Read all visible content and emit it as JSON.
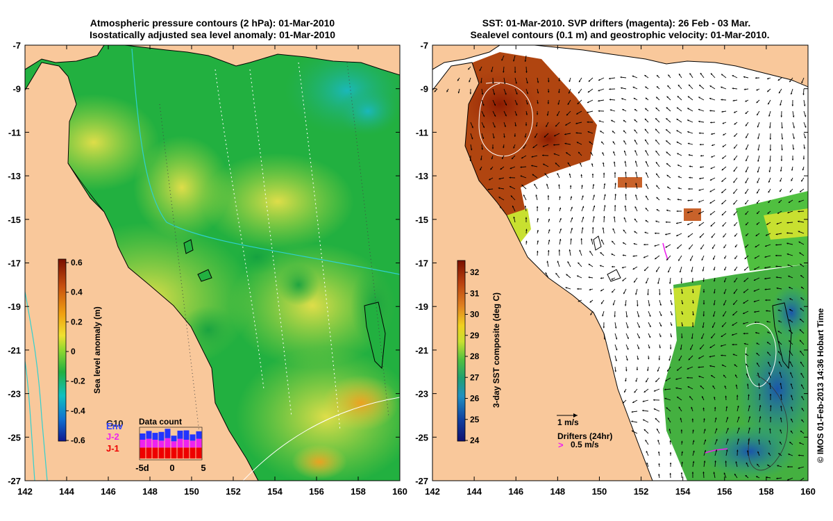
{
  "left_map": {
    "title_line1": "Atmospheric pressure contours (2 hPa): 01-Mar-2010",
    "title_line2": "Isostatically adjusted sea level anomaly: 01-Mar-2010",
    "colorbar": {
      "label": "Sea level anomaly (m)",
      "ticks": [
        "0.6",
        "0.4",
        "0.2",
        "0",
        "-0.2",
        "-0.4",
        "-0.6"
      ]
    },
    "inset": {
      "title": "Data count",
      "legend": [
        {
          "label": "G10",
          "color": "#222222"
        },
        {
          "label": "Env",
          "color": "#3344ff"
        },
        {
          "label": "J-2",
          "color": "#ee22ee"
        },
        {
          "label": "J-1",
          "color": "#ee0000"
        }
      ],
      "x_ticks": [
        "-5d",
        "0",
        "5"
      ],
      "bars": [
        {
          "j1": 0.35,
          "j2": 0.25,
          "env": 0.2
        },
        {
          "j1": 0.35,
          "j2": 0.28,
          "env": 0.25
        },
        {
          "j1": 0.35,
          "j2": 0.25,
          "env": 0.22
        },
        {
          "j1": 0.35,
          "j2": 0.22,
          "env": 0.28
        },
        {
          "j1": 0.35,
          "j2": 0.3,
          "env": 0.3
        },
        {
          "j1": 0.35,
          "j2": 0.2,
          "env": 0.18
        },
        {
          "j1": 0.35,
          "j2": 0.28,
          "env": 0.26
        },
        {
          "j1": 0.35,
          "j2": 0.25,
          "env": 0.3
        },
        {
          "j1": 0.35,
          "j2": 0.22,
          "env": 0.2
        },
        {
          "j1": 0.35,
          "j2": 0.28,
          "env": 0.24
        }
      ]
    }
  },
  "right_map": {
    "title_line1": "SST: 01-Mar-2010. SVP drifters (magenta): 26 Feb - 03 Mar.",
    "title_line2": "Sealevel contours (0.1 m) and geostrophic velocity: 01-Mar-2010.",
    "colorbar": {
      "label": "3-day SST composite (deg C)",
      "ticks": [
        "32",
        "31",
        "30",
        "29",
        "28",
        "27",
        "26",
        "25",
        "24"
      ]
    },
    "velocity_scale": "1 m/s",
    "drifters_label": "Drifters (24hr)",
    "drifters_speed": "0.5 m/s",
    "credit": "© IMOS 01-Feb-2013 14:36 Hobart Time"
  },
  "axes": {
    "x_ticks": [
      "142",
      "144",
      "146",
      "148",
      "150",
      "152",
      "154",
      "156",
      "158",
      "160"
    ],
    "y_ticks": [
      "-7",
      "-9",
      "-11",
      "-13",
      "-15",
      "-17",
      "-19",
      "-21",
      "-23",
      "-25",
      "-27"
    ]
  },
  "colors": {
    "land": "#f9c89b",
    "sla_ramp": [
      "#7a0f00",
      "#c85010",
      "#f0a010",
      "#f0e030",
      "#90d830",
      "#22b040",
      "#10c0c0",
      "#1070d0",
      "#101890"
    ],
    "sst_ramp": [
      "#7a1000",
      "#b84010",
      "#e08020",
      "#f0d020",
      "#c8e030",
      "#50c040",
      "#20a070",
      "#2090c0",
      "#1040a0",
      "#101070"
    ],
    "drifter": "#ee22ee"
  }
}
